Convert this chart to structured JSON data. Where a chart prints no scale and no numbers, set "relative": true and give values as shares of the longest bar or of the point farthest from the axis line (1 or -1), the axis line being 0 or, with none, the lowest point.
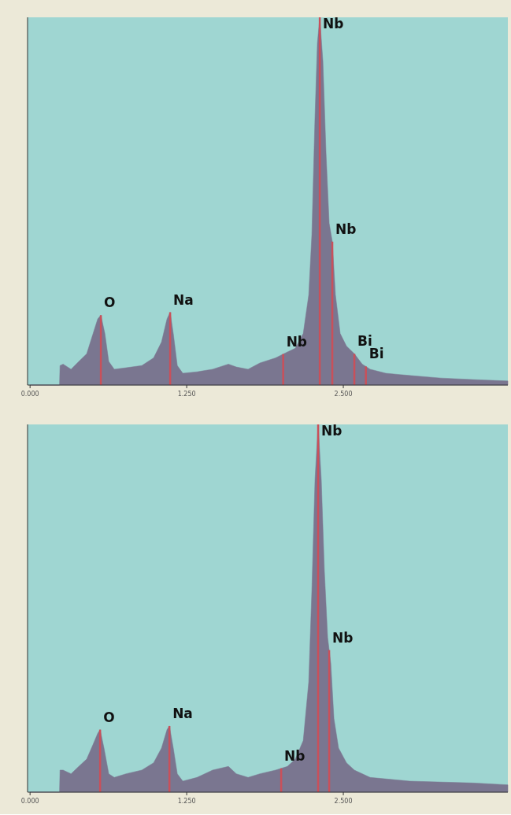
{
  "chart_data": [
    {
      "type": "area",
      "relative": true,
      "tick_labels": "x",
      "color": "#7a7690",
      "xlim": [
        -0.02,
        3.813
      ],
      "xticks": [
        {
          "value": 0,
          "label": "0.000"
        },
        {
          "value": 1.25,
          "label": "1.250"
        },
        {
          "value": 2.5,
          "label": "2.500"
        }
      ],
      "x": [
        0,
        0.235,
        0.239,
        0.264,
        0.327,
        0.389,
        0.452,
        0.503,
        0.54,
        0.565,
        0.597,
        0.628,
        0.672,
        0.766,
        0.892,
        0.986,
        1.049,
        1.093,
        1.118,
        1.143,
        1.175,
        1.219,
        1.332,
        1.457,
        1.583,
        1.646,
        1.74,
        1.834,
        1.96,
        2.054,
        2.117,
        2.18,
        2.224,
        2.249,
        2.274,
        2.293,
        2.312,
        2.337,
        2.362,
        2.387,
        2.412,
        2.437,
        2.475,
        2.525,
        2.588,
        2.651,
        2.714,
        2.839,
        3.028,
        3.279,
        3.53,
        3.813
      ],
      "values": [
        0,
        0,
        0.053,
        0.057,
        0.043,
        0.064,
        0.085,
        0.14,
        0.18,
        0.19,
        0.14,
        0.064,
        0.043,
        0.047,
        0.053,
        0.074,
        0.117,
        0.18,
        0.198,
        0.14,
        0.053,
        0.032,
        0.036,
        0.043,
        0.057,
        0.049,
        0.043,
        0.06,
        0.074,
        0.09,
        0.1,
        0.14,
        0.245,
        0.41,
        0.73,
        0.93,
        1,
        0.88,
        0.63,
        0.44,
        0.39,
        0.245,
        0.14,
        0.106,
        0.085,
        0.057,
        0.043,
        0.032,
        0.026,
        0.019,
        0.015,
        0.011
      ],
      "ref_lines": [
        {
          "axis": "x",
          "value": 0.565,
          "label": "O"
        },
        {
          "axis": "x",
          "value": 1.118,
          "label": "Na"
        },
        {
          "axis": "x",
          "value": 2.02,
          "label": "Nb"
        },
        {
          "axis": "x",
          "value": 2.312,
          "label": "Nb"
        },
        {
          "axis": "x",
          "value": 2.412,
          "label": "Nb"
        },
        {
          "axis": "x",
          "value": 2.588,
          "label": "Bi"
        },
        {
          "axis": "x",
          "value": 2.68,
          "label": "Bi"
        }
      ]
    },
    {
      "type": "area",
      "relative": true,
      "tick_labels": "x",
      "color": "#7a7690",
      "xlim": [
        -0.02,
        3.813
      ],
      "xticks": [
        {
          "value": 0,
          "label": "0.000"
        },
        {
          "value": 1.25,
          "label": "1.250"
        },
        {
          "value": 2.5,
          "label": "2.500"
        }
      ],
      "x": [
        0,
        0.235,
        0.239,
        0.264,
        0.327,
        0.389,
        0.452,
        0.503,
        0.54,
        0.559,
        0.59,
        0.628,
        0.672,
        0.766,
        0.892,
        0.986,
        1.049,
        1.093,
        1.112,
        1.143,
        1.175,
        1.219,
        1.332,
        1.457,
        1.583,
        1.646,
        1.74,
        1.834,
        1.96,
        2.054,
        2.117,
        2.18,
        2.224,
        2.249,
        2.274,
        2.299,
        2.324,
        2.349,
        2.375,
        2.4,
        2.425,
        2.462,
        2.525,
        2.588,
        2.714,
        3.028,
        3.53,
        3.813
      ],
      "values": [
        0,
        0,
        0.06,
        0.06,
        0.05,
        0.07,
        0.09,
        0.13,
        0.16,
        0.17,
        0.12,
        0.05,
        0.04,
        0.05,
        0.06,
        0.08,
        0.12,
        0.17,
        0.18,
        0.12,
        0.05,
        0.03,
        0.04,
        0.06,
        0.07,
        0.05,
        0.04,
        0.05,
        0.06,
        0.07,
        0.09,
        0.14,
        0.3,
        0.55,
        0.85,
        1,
        0.85,
        0.6,
        0.42,
        0.35,
        0.2,
        0.12,
        0.08,
        0.06,
        0.04,
        0.03,
        0.025,
        0.02
      ],
      "ref_lines": [
        {
          "axis": "x",
          "value": 0.559,
          "label": "O"
        },
        {
          "axis": "x",
          "value": 1.112,
          "label": "Na"
        },
        {
          "axis": "x",
          "value": 2.004,
          "label": "Nb"
        },
        {
          "axis": "x",
          "value": 2.299,
          "label": "Nb"
        },
        {
          "axis": "x",
          "value": 2.387,
          "label": "Nb"
        }
      ]
    }
  ]
}
